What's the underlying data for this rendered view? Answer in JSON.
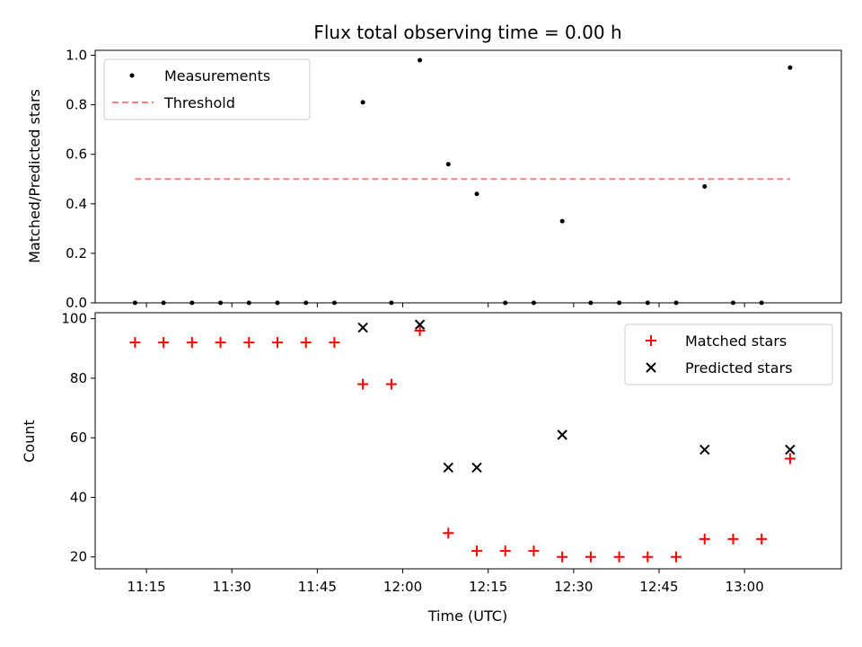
{
  "chart_data": [
    {
      "type": "scatter",
      "title": "Flux total observing time = 0.00 h",
      "xlabel": "",
      "ylabel": "Matched/Predicted stars",
      "ylim": [
        0,
        1.02
      ],
      "yticks": [
        "0.0",
        "0.2",
        "0.4",
        "0.6",
        "0.8",
        "1.0"
      ],
      "ytick_values": [
        0,
        0.2,
        0.4,
        0.6,
        0.8,
        1.0
      ],
      "x": [
        "11:13",
        "11:18",
        "11:23",
        "11:28",
        "11:33",
        "11:38",
        "11:43",
        "11:48",
        "11:53",
        "11:58",
        "12:03",
        "12:08",
        "12:13",
        "12:18",
        "12:23",
        "12:28",
        "12:33",
        "12:38",
        "12:43",
        "12:48",
        "12:53",
        "12:58",
        "13:03",
        "13:08"
      ],
      "series": [
        {
          "name": "Measurements",
          "color": "#000000",
          "marker": "dot",
          "values": [
            0,
            0,
            0,
            0,
            0,
            0,
            0,
            0,
            0.81,
            0,
            0.98,
            0.56,
            0.44,
            0,
            0,
            0.33,
            0,
            0,
            0,
            0,
            0.47,
            0,
            0,
            0.95
          ]
        },
        {
          "name": "Threshold",
          "color": "#ff7f7f",
          "style": "dashed",
          "x_range": [
            "11:13",
            "13:08"
          ],
          "value": 0.5
        }
      ],
      "legend": "top-left",
      "grid": false
    },
    {
      "type": "scatter",
      "title": "",
      "xlabel": "Time (UTC)",
      "ylabel": "Count",
      "ylim": [
        16,
        102
      ],
      "yticks": [
        "20",
        "40",
        "60",
        "80",
        "100"
      ],
      "ytick_values": [
        20,
        40,
        60,
        80,
        100
      ],
      "xlim": [
        "11:06",
        "13:17"
      ],
      "xticks": [
        "11:15",
        "11:30",
        "11:45",
        "12:00",
        "12:15",
        "12:30",
        "12:45",
        "13:00"
      ],
      "series": [
        {
          "name": "Matched stars",
          "color": "#ff0000",
          "marker": "plus",
          "x": [
            "11:13",
            "11:18",
            "11:23",
            "11:28",
            "11:33",
            "11:38",
            "11:43",
            "11:48",
            "11:53",
            "11:58",
            "12:03",
            "12:08",
            "12:13",
            "12:18",
            "12:23",
            "12:28",
            "12:33",
            "12:38",
            "12:43",
            "12:48",
            "12:53",
            "12:58",
            "13:03",
            "13:08"
          ],
          "values": [
            92,
            92,
            92,
            92,
            92,
            92,
            92,
            92,
            78,
            78,
            96,
            28,
            22,
            22,
            22,
            20,
            20,
            20,
            20,
            20,
            26,
            26,
            26,
            53
          ]
        },
        {
          "name": "Predicted stars",
          "color": "#000000",
          "marker": "x",
          "x": [
            "11:53",
            "12:03",
            "12:08",
            "12:13",
            "12:28",
            "12:53",
            "13:08"
          ],
          "values": [
            97,
            98,
            50,
            50,
            61,
            56,
            56
          ]
        }
      ],
      "legend": "top-right",
      "grid": false
    }
  ]
}
